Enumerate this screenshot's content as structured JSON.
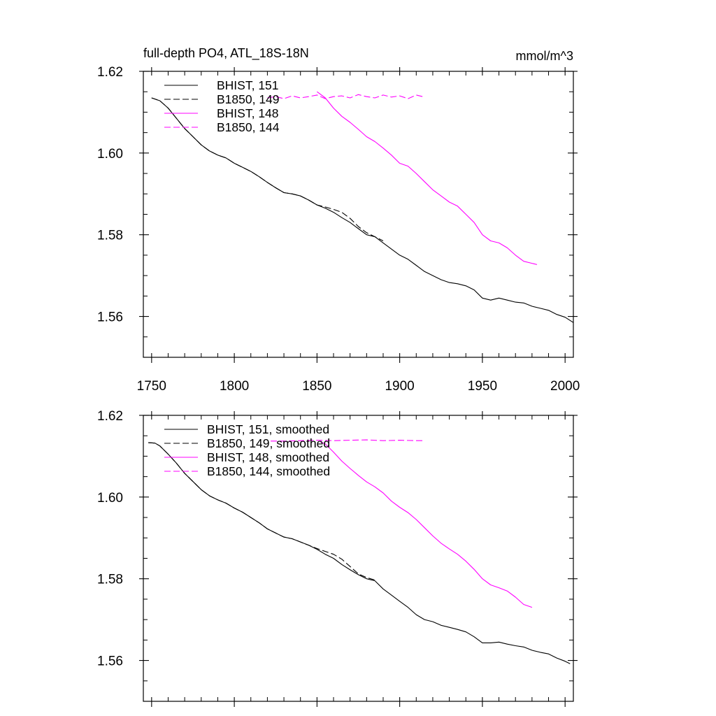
{
  "title": "full-depth PO4, ATL_18S-18N",
  "units": "mmol/m^3",
  "colors": {
    "black": "#000000",
    "magenta": "#ff00ff"
  },
  "chart_data": [
    {
      "type": "line",
      "xlim": [
        1745,
        2005
      ],
      "ylim": [
        1.55,
        1.62
      ],
      "xticks": [
        1750,
        1800,
        1850,
        1900,
        1950,
        2000
      ],
      "yticks": [
        1.56,
        1.58,
        1.6,
        1.62
      ],
      "ytick_labels": [
        "1.56",
        "1.58",
        "1.60",
        "1.62"
      ],
      "xtick_labels": [
        "1750",
        "1800",
        "1850",
        "1900",
        "1950",
        "2000"
      ],
      "series": [
        {
          "name": "BHIST, 151",
          "color": "black",
          "dash": "solid",
          "x": [
            1750,
            1755,
            1760,
            1765,
            1770,
            1775,
            1780,
            1785,
            1790,
            1795,
            1800,
            1805,
            1810,
            1815,
            1820,
            1825,
            1830,
            1835,
            1840,
            1845,
            1850,
            1855,
            1860,
            1865,
            1870,
            1875,
            1880,
            1885,
            1890,
            1895,
            1900,
            1905,
            1910,
            1915,
            1920,
            1925,
            1930,
            1935,
            1940,
            1945,
            1950,
            1955,
            1960,
            1965,
            1970,
            1975,
            1980,
            1985,
            1990,
            1995,
            2000,
            2005
          ],
          "y": [
            1.6135,
            1.6128,
            1.611,
            1.6085,
            1.606,
            1.604,
            1.602,
            1.6005,
            1.5995,
            1.5988,
            1.5975,
            1.5965,
            1.5955,
            1.5942,
            1.5928,
            1.5915,
            1.5903,
            1.59,
            1.5895,
            1.5885,
            1.5873,
            1.5865,
            1.5855,
            1.5842,
            1.583,
            1.5815,
            1.58,
            1.5795,
            1.578,
            1.5765,
            1.575,
            1.574,
            1.5725,
            1.571,
            1.57,
            1.569,
            1.5683,
            1.568,
            1.5675,
            1.5665,
            1.5645,
            1.564,
            1.5645,
            1.564,
            1.5635,
            1.5633,
            1.5625,
            1.562,
            1.5615,
            1.5605,
            1.5598,
            1.5585
          ]
        },
        {
          "name": "B1850, 149",
          "color": "black",
          "dash": "dashed",
          "x": [
            1750,
            1755,
            1760,
            1765,
            1770,
            1775,
            1780,
            1785,
            1790,
            1795,
            1800,
            1805,
            1810,
            1815,
            1820,
            1825,
            1830,
            1835,
            1840,
            1845,
            1850,
            1855,
            1860,
            1865,
            1870,
            1875,
            1880,
            1885,
            1890
          ],
          "y": [
            1.6135,
            1.6128,
            1.611,
            1.6085,
            1.606,
            1.604,
            1.602,
            1.6005,
            1.5995,
            1.5988,
            1.5975,
            1.5965,
            1.5955,
            1.5942,
            1.5928,
            1.5915,
            1.5903,
            1.59,
            1.5895,
            1.5885,
            1.5873,
            1.5868,
            1.5862,
            1.5855,
            1.584,
            1.582,
            1.5805,
            1.5795,
            1.5785
          ]
        },
        {
          "name": "BHIST, 148",
          "color": "magenta",
          "dash": "solid",
          "x": [
            1850,
            1855,
            1860,
            1865,
            1870,
            1875,
            1880,
            1885,
            1890,
            1895,
            1900,
            1905,
            1910,
            1915,
            1920,
            1925,
            1930,
            1935,
            1940,
            1945,
            1950,
            1955,
            1960,
            1965,
            1970,
            1975,
            1980,
            1983
          ],
          "y": [
            1.615,
            1.6135,
            1.611,
            1.609,
            1.6075,
            1.6058,
            1.604,
            1.6028,
            1.6012,
            1.5995,
            1.5975,
            1.5968,
            1.595,
            1.593,
            1.591,
            1.5895,
            1.588,
            1.587,
            1.585,
            1.583,
            1.58,
            1.5785,
            1.578,
            1.5768,
            1.575,
            1.5735,
            1.573,
            1.5727
          ]
        },
        {
          "name": "B1850, 144",
          "color": "magenta",
          "dash": "dashed",
          "x": [
            1820,
            1825,
            1830,
            1835,
            1840,
            1845,
            1850,
            1855,
            1860,
            1865,
            1870,
            1875,
            1880,
            1885,
            1890,
            1895,
            1900,
            1905,
            1910,
            1915
          ],
          "y": [
            1.6135,
            1.6138,
            1.6133,
            1.614,
            1.6135,
            1.6138,
            1.6142,
            1.6133,
            1.6138,
            1.614,
            1.6135,
            1.6143,
            1.6138,
            1.6135,
            1.6142,
            1.6137,
            1.614,
            1.6133,
            1.6142,
            1.6137
          ]
        }
      ]
    },
    {
      "type": "line",
      "xlim": [
        1745,
        2005
      ],
      "ylim": [
        1.55,
        1.62
      ],
      "xticks": [
        1750,
        1800,
        1850,
        1900,
        1950,
        2000
      ],
      "yticks": [
        1.56,
        1.58,
        1.6,
        1.62
      ],
      "ytick_labels": [
        "1.56",
        "1.58",
        "1.60",
        "1.62"
      ],
      "xtick_labels": [],
      "series": [
        {
          "name": "BHIST, 151, smoothed",
          "color": "black",
          "dash": "solid",
          "x": [
            1748,
            1752,
            1755,
            1760,
            1765,
            1770,
            1775,
            1780,
            1785,
            1790,
            1795,
            1800,
            1805,
            1810,
            1815,
            1820,
            1825,
            1830,
            1835,
            1840,
            1845,
            1850,
            1855,
            1860,
            1865,
            1870,
            1875,
            1880,
            1885,
            1890,
            1895,
            1900,
            1905,
            1910,
            1915,
            1920,
            1925,
            1930,
            1935,
            1940,
            1945,
            1950,
            1955,
            1960,
            1965,
            1970,
            1975,
            1980,
            1985,
            1990,
            1995,
            2000,
            2003
          ],
          "y": [
            1.6133,
            1.6132,
            1.6125,
            1.6105,
            1.6083,
            1.6058,
            1.6038,
            1.6018,
            1.6003,
            1.5993,
            1.5985,
            1.5973,
            1.5963,
            1.595,
            1.5937,
            1.5922,
            1.5912,
            1.5902,
            1.5898,
            1.589,
            1.5882,
            1.5872,
            1.586,
            1.585,
            1.5835,
            1.5822,
            1.581,
            1.58,
            1.5795,
            1.5775,
            1.576,
            1.5745,
            1.573,
            1.5712,
            1.57,
            1.5695,
            1.5686,
            1.5681,
            1.5676,
            1.567,
            1.5658,
            1.5643,
            1.5643,
            1.5645,
            1.564,
            1.5636,
            1.5633,
            1.5625,
            1.562,
            1.5616,
            1.5606,
            1.5598,
            1.5592
          ]
        },
        {
          "name": "B1850, 149, smoothed",
          "color": "black",
          "dash": "dashed",
          "x": [
            1748,
            1752,
            1755,
            1760,
            1765,
            1770,
            1775,
            1780,
            1785,
            1790,
            1795,
            1800,
            1805,
            1810,
            1815,
            1820,
            1825,
            1830,
            1835,
            1840,
            1845,
            1850,
            1855,
            1860,
            1865,
            1870,
            1875,
            1880,
            1885
          ],
          "y": [
            1.6133,
            1.6132,
            1.6125,
            1.6105,
            1.6083,
            1.6058,
            1.6038,
            1.6018,
            1.6003,
            1.5993,
            1.5985,
            1.5973,
            1.5963,
            1.595,
            1.5937,
            1.5922,
            1.5912,
            1.5902,
            1.5898,
            1.589,
            1.5882,
            1.5874,
            1.5867,
            1.586,
            1.5848,
            1.583,
            1.5812,
            1.5803,
            1.5797
          ]
        },
        {
          "name": "BHIST, 148, smoothed",
          "color": "magenta",
          "dash": "solid",
          "x": [
            1852,
            1855,
            1860,
            1865,
            1870,
            1875,
            1880,
            1885,
            1890,
            1895,
            1900,
            1905,
            1910,
            1915,
            1920,
            1925,
            1930,
            1935,
            1940,
            1945,
            1950,
            1955,
            1960,
            1965,
            1970,
            1975,
            1980
          ],
          "y": [
            1.6135,
            1.613,
            1.611,
            1.6088,
            1.607,
            1.6053,
            1.6037,
            1.6025,
            1.601,
            1.599,
            1.5975,
            1.5962,
            1.5945,
            1.5925,
            1.5905,
            1.5887,
            1.5873,
            1.586,
            1.5843,
            1.5823,
            1.58,
            1.5785,
            1.5778,
            1.577,
            1.5755,
            1.5737,
            1.573
          ]
        },
        {
          "name": "B1850, 144, smoothed",
          "color": "magenta",
          "dash": "dashed",
          "x": [
            1822,
            1830,
            1840,
            1850,
            1860,
            1870,
            1880,
            1890,
            1900,
            1910,
            1915
          ],
          "y": [
            1.6137,
            1.6137,
            1.6138,
            1.6139,
            1.6138,
            1.6139,
            1.614,
            1.6138,
            1.6139,
            1.6138,
            1.6138
          ]
        }
      ]
    }
  ]
}
